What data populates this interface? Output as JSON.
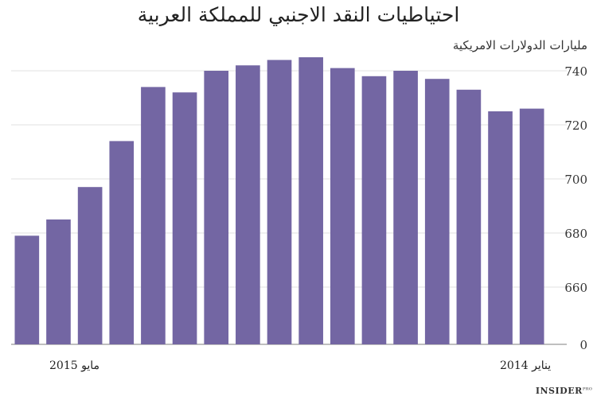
{
  "chart_data": {
    "type": "bar",
    "title": "احتياطيات النقد الاجنبي للمملكة العربية",
    "ylabel": "مليارات الدولارات الامريكية",
    "xlabel": "",
    "categories": [
      "مايو 2015",
      "",
      "",
      "",
      "",
      "",
      "",
      "",
      "",
      "",
      "",
      "",
      "",
      "",
      "",
      "",
      "يناير 2014"
    ],
    "x_tick_labels": {
      "left": "مايو  2015",
      "right": "يناير 2014"
    },
    "values": [
      679,
      685,
      697,
      714,
      734,
      732,
      740,
      742,
      744,
      745,
      741,
      738,
      740,
      737,
      733,
      725,
      726
    ],
    "ylim": [
      0,
      750
    ],
    "y_ticks": [
      "660",
      "680",
      "700",
      "720",
      "740",
      "0"
    ],
    "bar_color": "#7366a3",
    "grid": true,
    "legend": "none"
  },
  "logo": {
    "name": "INSIDER",
    "suffix": "PRO"
  }
}
